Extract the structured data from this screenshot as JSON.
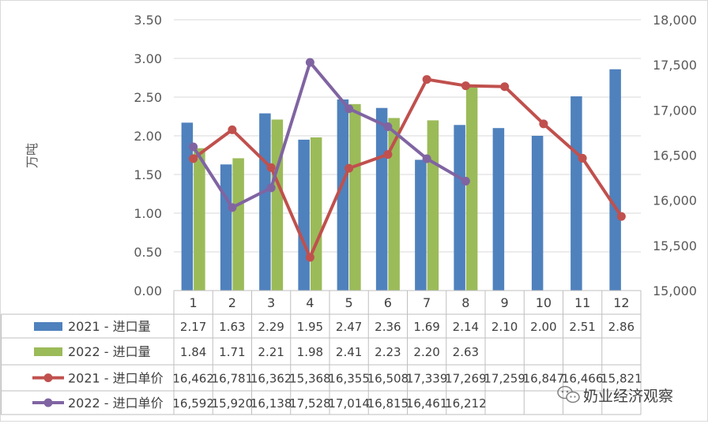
{
  "chart_data": {
    "type": "bar",
    "ylabel": "万吨",
    "categories": [
      "1",
      "2",
      "3",
      "4",
      "5",
      "6",
      "7",
      "8",
      "9",
      "10",
      "11",
      "12"
    ],
    "y_left": {
      "min": 0,
      "max": 3.5,
      "step": 0.5,
      "ticks": [
        "0.00",
        "0.50",
        "1.00",
        "1.50",
        "2.00",
        "2.50",
        "3.00",
        "3.50"
      ]
    },
    "y_right": {
      "min": 15000,
      "max": 18000,
      "step": 500,
      "ticks": [
        "15,000",
        "15,500",
        "16,000",
        "16,500",
        "17,000",
        "17,500",
        "18,000"
      ]
    },
    "gridlines": true,
    "legend_placement": "data-table-below",
    "series": [
      {
        "name": "2021 - 进口量",
        "type": "bar",
        "axis": "left",
        "color": "#4f81bd",
        "values": [
          2.17,
          1.63,
          2.29,
          1.95,
          2.47,
          2.36,
          1.69,
          2.14,
          2.1,
          2.0,
          2.51,
          2.86
        ],
        "labels": [
          "2.17",
          "1.63",
          "2.29",
          "1.95",
          "2.47",
          "2.36",
          "1.69",
          "2.14",
          "2.10",
          "2.00",
          "2.51",
          "2.86"
        ]
      },
      {
        "name": "2022 - 进口量",
        "type": "bar",
        "axis": "left",
        "color": "#9bbb59",
        "values": [
          1.84,
          1.71,
          2.21,
          1.98,
          2.41,
          2.23,
          2.2,
          2.63,
          null,
          null,
          null,
          null
        ],
        "labels": [
          "1.84",
          "1.71",
          "2.21",
          "1.98",
          "2.41",
          "2.23",
          "2.20",
          "2.63",
          "",
          "",
          "",
          ""
        ]
      },
      {
        "name": "2021 - 进口单价",
        "type": "line",
        "axis": "right",
        "color": "#c0504d",
        "values": [
          16462,
          16781,
          16362,
          15368,
          16355,
          16508,
          17339,
          17269,
          17259,
          16847,
          16466,
          15821
        ],
        "labels": [
          "16,462",
          "16,781",
          "16,362",
          "15,368",
          "16,355",
          "16,508",
          "17,339",
          "17,269",
          "17,259",
          "16,847",
          "16,466",
          "15,821"
        ]
      },
      {
        "name": "2022 - 进口单价",
        "type": "line",
        "axis": "right",
        "color": "#8064a2",
        "values": [
          16592,
          15920,
          16138,
          17528,
          17014,
          16815,
          16461,
          16212,
          null,
          null,
          null,
          null
        ],
        "labels": [
          "16,592",
          "15,920",
          "16,138",
          "17,528",
          "17,014",
          "16,815",
          "16,461",
          "16,212",
          "",
          "",
          "",
          ""
        ]
      }
    ]
  },
  "watermark": {
    "text": "奶业经济观察",
    "icon": "wechat-icon"
  }
}
